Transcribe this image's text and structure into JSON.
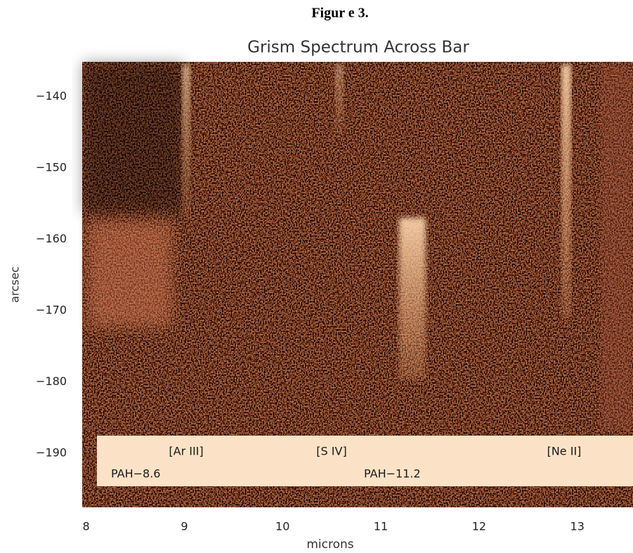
{
  "figure_label": "Figur e 3.",
  "chart_data": {
    "type": "image",
    "title": "Grism Spectrum  Across Bar",
    "x_label": "microns",
    "y_label": "arcsec",
    "xlim": [
      7.96,
      13.56
    ],
    "ylim": [
      -197.6,
      -135.1
    ],
    "xticks": [
      8,
      9,
      10,
      11,
      12,
      13
    ],
    "yticks": [
      {
        "value": -140,
        "label": "−140"
      },
      {
        "value": -150,
        "label": "−150"
      },
      {
        "value": -160,
        "label": "−160"
      },
      {
        "value": -170,
        "label": "−170"
      },
      {
        "value": -180,
        "label": "−180"
      },
      {
        "value": -190,
        "label": "−190"
      }
    ],
    "annotations": [
      "[Ar III]",
      "[S IV]",
      "[Ne II]",
      "PAH−8.6",
      "PAH−11.2"
    ]
  }
}
